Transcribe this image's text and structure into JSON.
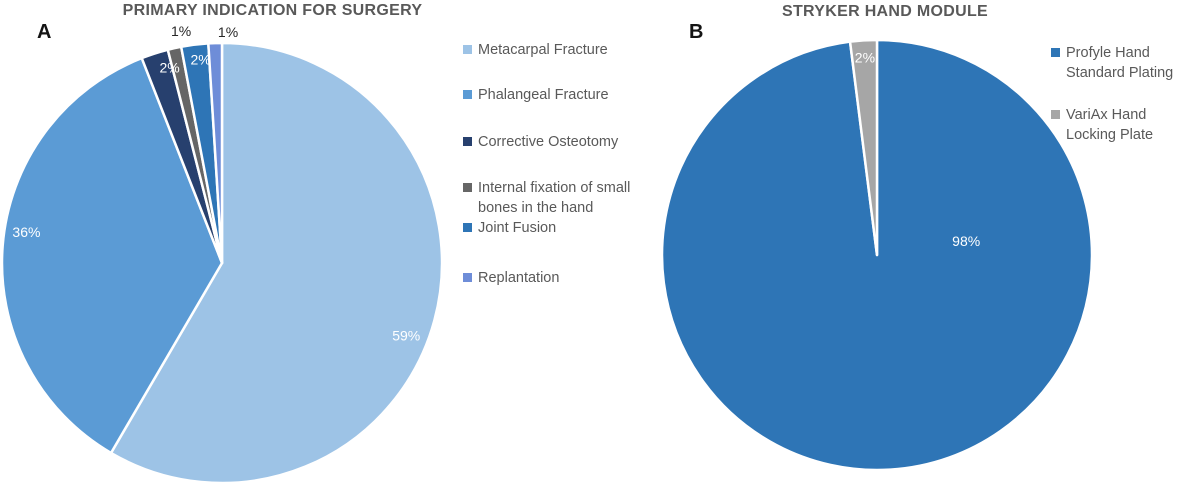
{
  "charts": [
    {
      "panel_label": "A",
      "title": "PRIMARY INDICATION FOR SURGERY",
      "title_color": "#595959",
      "chart_data": {
        "type": "pie",
        "title": "PRIMARY INDICATION FOR SURGERY",
        "start_angle_deg": 0,
        "direction": "clockwise",
        "legend_position": "right",
        "slices": [
          {
            "label": "Metacarpal Fracture",
            "value": 59,
            "pct_label": "59%",
            "color": "#9DC3E6",
            "label_angle_deg": 111.5,
            "label_r_frac": 0.9,
            "label_color": "#FFFFFF",
            "label_outside": false
          },
          {
            "label": "Phalangeal Fracture",
            "value": 36,
            "pct_label": "36%",
            "color": "#5B9BD5",
            "label_angle_deg": 279,
            "label_r_frac": 0.9,
            "label_color": "#FFFFFF",
            "label_outside": false
          },
          {
            "label": "Corrective Osteotomy",
            "value": 2,
            "pct_label": "2%",
            "color": "#27406E",
            "label_angle_deg": 345,
            "label_r_frac": 0.92,
            "label_color": "#FFFFFF",
            "label_outside": false
          },
          {
            "label": "Internal fixation of small bones in the hand",
            "value": 1,
            "pct_label": "1%",
            "color": "#666666",
            "label_angle_deg": 350,
            "label_r_frac": 1.07,
            "label_color": "#262626",
            "label_outside": true
          },
          {
            "label": "Joint Fusion",
            "value": 2,
            "pct_label": "2%",
            "color": "#2E75B6",
            "label_angle_deg": 354,
            "label_r_frac": 0.93,
            "label_color": "#FFFFFF",
            "label_outside": false
          },
          {
            "label": "Replantation",
            "value": 1,
            "pct_label": "1%",
            "color": "#6E8DD8",
            "label_angle_deg": 1.5,
            "label_r_frac": 1.05,
            "label_color": "#262626",
            "label_outside": true
          }
        ]
      },
      "legend": {
        "items": [
          {
            "text": "Metacarpal Fracture"
          },
          {
            "text": "Phalangeal Fracture"
          },
          {
            "text": "Corrective Osteotomy"
          },
          {
            "text": "Internal fixation of small\nbones in the hand"
          },
          {
            "text": "Joint Fusion"
          },
          {
            "text": "Replantation"
          }
        ]
      }
    },
    {
      "panel_label": "B",
      "title": "STRYKER HAND MODULE",
      "title_color": "#595959",
      "chart_data": {
        "type": "pie",
        "title": "STRYKER HAND MODULE",
        "start_angle_deg": 0,
        "direction": "clockwise",
        "legend_position": "right",
        "slices": [
          {
            "label": "Profyle Hand Standard Plating",
            "value": 98,
            "pct_label": "98%",
            "color": "#2E75B6",
            "label_angle_deg": 81,
            "label_r_frac": 0.42,
            "label_color": "#FFFFFF",
            "label_outside": false
          },
          {
            "label": "VariAx Hand Locking Plate",
            "value": 2,
            "pct_label": "2%",
            "color": "#A6A6A6",
            "label_angle_deg": 356.5,
            "label_r_frac": 0.92,
            "label_color": "#FFFFFF",
            "label_outside": false
          }
        ]
      },
      "legend": {
        "items": [
          {
            "text": "Profyle Hand\nStandard Plating"
          },
          {
            "text": "VariAx Hand\nLocking Plate"
          }
        ]
      }
    }
  ]
}
